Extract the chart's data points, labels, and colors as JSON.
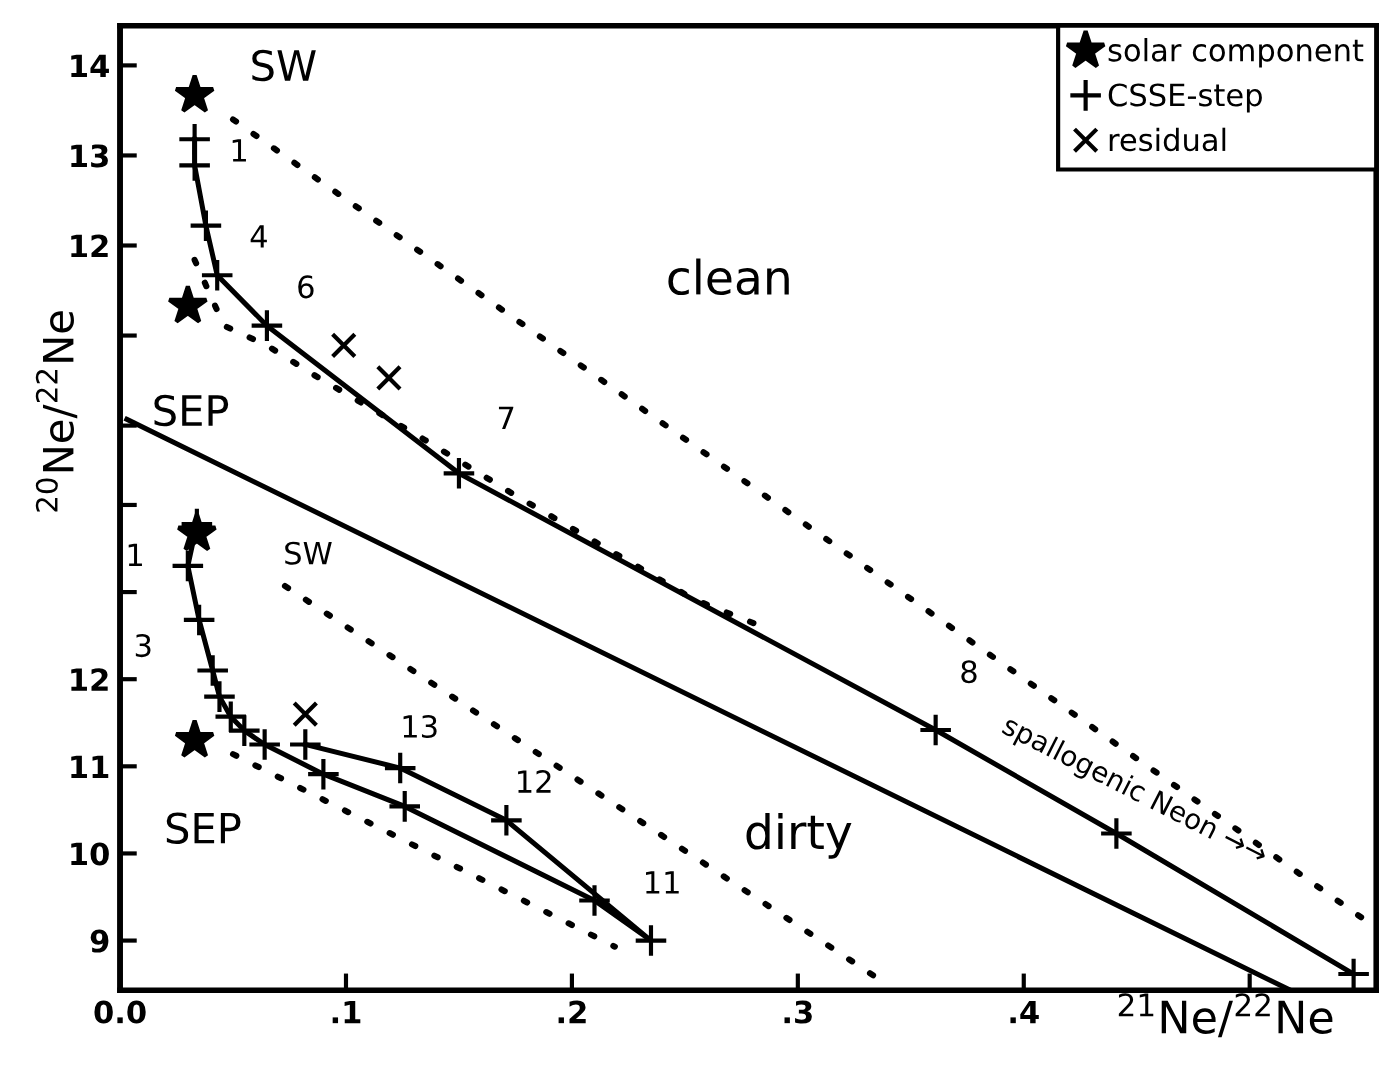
{
  "chart_data": [
    {
      "type": "scatter",
      "xlabel": "$^{21}$Ne/$^{22}$Ne",
      "ylabel": "$^{20}$Ne/$^{22}$Ne",
      "xlim": [
        0,
        0.556
      ],
      "ylim": [
        3.73,
        14.44
      ],
      "xticks": [
        {
          "value": 0,
          "label": "0.0"
        },
        {
          "value": 0.1,
          "label": ".1"
        },
        {
          "value": 0.2,
          "label": ".2"
        },
        {
          "value": 0.3,
          "label": ".3"
        },
        {
          "value": 0.4,
          "label": ".4"
        },
        {
          "value": 0.5,
          "label": null
        }
      ],
      "yticks": [
        14,
        13,
        12,
        {
          "value": 11,
          "label": null
        },
        {
          "value": 10,
          "label": null
        }
      ],
      "legend": "top right",
      "grid": false,
      "series": [
        {
          "name": "solar component",
          "marker": "star",
          "color": "#000000",
          "x": [
            0.033,
            0.03
          ],
          "values": [
            13.67,
            11.33
          ]
        },
        {
          "name": "CSSE-step",
          "type": "line",
          "marker": "cross",
          "line_style": "solid",
          "color": "#000000",
          "x": [
            0.033,
            0.033,
            0.038,
            0.043,
            0.065,
            0.15,
            0.361,
            0.441,
            0.546
          ],
          "values": [
            13.18,
            12.89,
            12.22,
            11.67,
            11.11,
            9.47,
            6.62,
            5.47,
            3.91
          ]
        },
        {
          "name": "residual",
          "marker": "x",
          "color": "#000000",
          "x": [
            0.099,
            0.119
          ],
          "values": [
            10.89,
            10.53
          ]
        },
        {
          "type": "line",
          "marker": "none",
          "line_style": "dotted",
          "color": "#000000",
          "x": [
            0.05,
            0.551
          ],
          "values": [
            13.4,
            4.51
          ]
        },
        {
          "type": "line",
          "marker": "none",
          "line_style": "dotted",
          "color": "#000000",
          "x": [
            0.033,
            0.046,
            0.065,
            0.086,
            0.135,
            0.174,
            0.254,
            0.281
          ],
          "values": [
            11.84,
            11.11,
            10.89,
            10.56,
            9.84,
            9.24,
            8.07,
            7.8
          ]
        },
        {
          "type": "line",
          "marker": "none",
          "line_style": "solid",
          "color": "#000000",
          "x": [
            0.003,
            0.518
          ],
          "values": [
            10.07,
            3.73
          ]
        }
      ],
      "annotations": [
        "SW",
        {
          "text": "SEP",
          "x": 0.03,
          "y": 11.33
        },
        {
          "text": "1",
          "x": 0.033,
          "y": 13.18
        },
        {
          "text": "4",
          "x": 0.043,
          "y": 11.67
        },
        {
          "text": "6",
          "x": 0.065,
          "y": 11.11
        },
        {
          "text": "7",
          "x": 0.15,
          "y": 9.47
        },
        {
          "text": "8",
          "x": 0.361,
          "y": 6.62
        },
        "clean",
        {
          "text": "spallogenic Neon →→",
          "x": 0.449,
          "y": 5.35
        }
      ]
    },
    {
      "type": "scatter",
      "xlim": [
        0,
        0.556
      ],
      "ylim": [
        8.43,
        19.5
      ],
      "tick_labels": "y",
      "grid": false,
      "yticks": [
        {
          "value": 14,
          "label": null
        },
        {
          "value": 13,
          "label": null
        },
        12,
        11,
        10,
        9
      ],
      "series": [
        {
          "marker": "star",
          "color": "#000000",
          "x": [
            0.034,
            0.033
          ],
          "values": [
            13.67,
            11.3
          ]
        },
        {
          "type": "line",
          "marker": "cross",
          "line_style": "solid",
          "color": "#000000",
          "x": [
            0.034,
            0.03,
            0.035,
            0.041,
            0.044,
            0.049,
            0.055,
            0.064,
            0.09,
            0.126,
            0.21,
            0.235,
            0.171,
            0.124,
            0.082
          ],
          "values": [
            13.78,
            13.3,
            12.68,
            12.1,
            11.8,
            11.57,
            11.41,
            11.25,
            10.91,
            10.54,
            9.46,
            9.0,
            10.38,
            10.98,
            11.25
          ]
        },
        {
          "marker": "x",
          "color": "#000000",
          "x": [
            0.082
          ],
          "values": [
            11.6
          ]
        },
        {
          "type": "line",
          "marker": "none",
          "line_style": "dotted",
          "color": "#000000",
          "x": [
            0.073,
            0.334
          ],
          "values": [
            13.07,
            8.59
          ]
        },
        {
          "type": "line",
          "marker": "none",
          "line_style": "dotted",
          "color": "#000000",
          "x": [
            0.05,
            0.219
          ],
          "values": [
            11.14,
            8.93
          ]
        }
      ],
      "annotations": [
        {
          "text": "SW",
          "x": 0.034,
          "y": 13.67
        },
        {
          "text": "SEP",
          "x": 0.033,
          "y": 11.3
        },
        {
          "text": "1",
          "x": 0.03,
          "y": 13.3
        },
        {
          "text": "3",
          "x": 0.041,
          "y": 12.1
        },
        {
          "text": "13",
          "x": 0.124,
          "y": 10.98
        },
        {
          "text": "12",
          "x": 0.171,
          "y": 10.38
        },
        {
          "text": "11",
          "x": 0.235,
          "y": 9.0
        },
        "dirty"
      ]
    }
  ]
}
